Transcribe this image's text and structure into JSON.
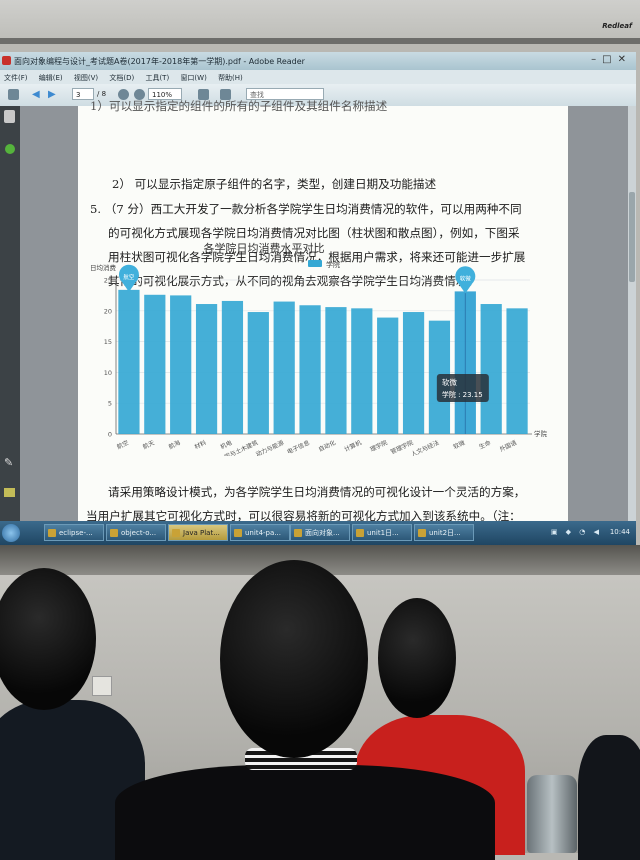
{
  "room": {
    "projector_brand": "Redleaf"
  },
  "window": {
    "title": "面向对象编程与设计_考试题A卷(2017年-2018年第一学期).pdf - Adobe Reader",
    "controls": [
      "–",
      "□",
      "✕"
    ]
  },
  "menu": [
    "文件(F)",
    "编辑(E)",
    "视图(V)",
    "文档(D)",
    "工具(T)",
    "窗口(W)",
    "帮助(H)"
  ],
  "toolbar": {
    "page_current": "3",
    "page_total": "/ 8",
    "zoom": "110%",
    "search_placeholder": "查找"
  },
  "document": {
    "line_top_partial": "1）可以显示指定的组件的所有的子组件及其组件名称描述",
    "line_2": "2）  可以显示指定原子组件的名字，类型，创建日期及功能描述",
    "q5_l1": "5.   （7 分）西工大开发了一款分析各学院学生日均消费情况的软件，可以用两种不同",
    "q5_l2": "的可视化方式展现各学院日均消费情况对比图（柱状图和散点图），例如，下图采",
    "q5_l3": "用柱状图可视化各学院学生日均消费情况，根据用户需求，将来还可能进一步扩展",
    "q5_l4": "其他的可视化展示方式，从不同的视角去观察各学院学生日均消费情况。",
    "after_l1": "请采用策略设计模式，为各学院学生日均消费情况的可视化设计一个灵活的方案，",
    "after_l2": "当用户扩展其它可视化方式时，可以很容易将新的可视化方式加入到该系统中。（注："
  },
  "chart_data": {
    "type": "bar",
    "title": "各学院日均消费水平对比",
    "legend": "学院",
    "legend_position": "top",
    "ylabel": "日均消费",
    "xlabel": "学院",
    "ylim": [
      0,
      25
    ],
    "yticks": [
      0,
      5,
      10,
      15,
      20,
      25
    ],
    "grid": true,
    "categories": [
      "航空",
      "航天",
      "航海",
      "材料",
      "机电",
      "力学与土木建筑",
      "动力与能源",
      "电子信息",
      "自动化",
      "计算机",
      "理学院",
      "管理学院",
      "人文与经法",
      "软微",
      "生命",
      "外国语"
    ],
    "series": [
      {
        "name": "学院",
        "values": [
          23.4,
          22.6,
          22.5,
          21.1,
          21.6,
          19.8,
          21.5,
          20.9,
          20.6,
          20.4,
          18.9,
          19.8,
          18.4,
          23.15,
          21.1,
          20.4
        ],
        "color": "#35a8d4"
      }
    ],
    "markpoints": [
      {
        "index": 0,
        "label": "航空"
      },
      {
        "index": 13,
        "label": "软微"
      }
    ],
    "tooltip": {
      "title": "软微",
      "text": "学院 : 23.15"
    }
  },
  "taskbar": {
    "items": [
      "eclipse-...",
      "object-o...",
      "Java Plat...",
      "unit4-pa...",
      "面向对象...",
      "unit1日...",
      "unit2日..."
    ],
    "active_index": 2,
    "clock": "10:44"
  }
}
